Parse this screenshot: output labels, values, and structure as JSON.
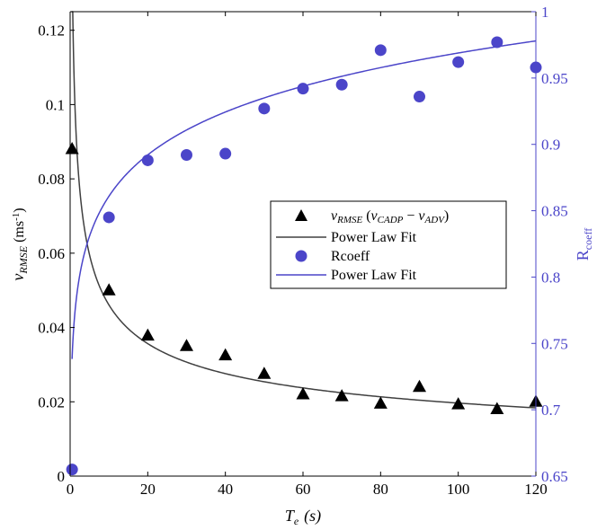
{
  "chart_data": {
    "type": "scatter",
    "xlabel": "T_e (s)",
    "xlabel_parts": {
      "main": "T",
      "sub": "e",
      "unit": "(s)"
    },
    "ylabel_left": "v_RMSE (ms-1)",
    "ylabel_left_parts": {
      "main": "v",
      "sub": "RMSE",
      "unit_open": "(ms",
      "unit_sup": "-1",
      "unit_close": ")"
    },
    "ylabel_right": "R_coeff",
    "ylabel_right_parts": {
      "main": "R",
      "sub": "coeff"
    },
    "xlim": [
      0,
      120
    ],
    "ylim_left": [
      0,
      0.125
    ],
    "ylim_right": [
      0.65,
      1.0
    ],
    "x_ticks": [
      "0",
      "20",
      "40",
      "60",
      "80",
      "100",
      "120"
    ],
    "y_left_ticks": [
      "0",
      "0.02",
      "0.04",
      "0.06",
      "0.08",
      "0.1",
      "0.12"
    ],
    "y_right_ticks": [
      "0.65",
      "0.7",
      "0.75",
      "0.8",
      "0.85",
      "0.9",
      "0.95",
      "1"
    ],
    "grid": false,
    "legend_position": "center-right",
    "colors": {
      "rmse": "#000000",
      "rmse_fit": "#404040",
      "rcoeff": "#4b45c9",
      "rcoeff_fit": "#4b45c9",
      "right_axis": "#4b45c9"
    },
    "series": [
      {
        "name": "v_RMSE (v_CADP − v_ADV)",
        "axis": "left",
        "marker": "triangle",
        "x": [
          0.5,
          10,
          20,
          30,
          40,
          50,
          60,
          70,
          80,
          90,
          100,
          110,
          120
        ],
        "y": [
          0.088,
          0.05,
          0.0378,
          0.035,
          0.0325,
          0.0275,
          0.022,
          0.0215,
          0.0195,
          0.024,
          0.0193,
          0.018,
          0.02
        ]
      },
      {
        "name": "Power Law Fit",
        "axis": "left",
        "line": "fit",
        "model": {
          "a": 0.108,
          "b": -0.37
        }
      },
      {
        "name": "Rcoeff",
        "axis": "right",
        "marker": "circle",
        "x": [
          0.5,
          10,
          20,
          30,
          40,
          50,
          60,
          70,
          80,
          90,
          100,
          110,
          120
        ],
        "y": [
          0.655,
          0.845,
          0.888,
          0.892,
          0.893,
          0.927,
          0.942,
          0.945,
          0.971,
          0.936,
          0.962,
          0.977,
          0.958
        ]
      },
      {
        "name": "Power Law Fit",
        "axis": "right",
        "line": "fit",
        "model": {
          "a": 0.765,
          "b": 0.0513
        }
      }
    ],
    "legend": {
      "entry1": {
        "main": "v",
        "sub": "RMSE",
        "open": " (",
        "v1": "v",
        "sub1": "CADP",
        "minus": " − ",
        "v2": "v",
        "sub2": "ADV",
        "close": ")"
      },
      "entry2": "Power Law Fit",
      "entry3": "Rcoeff",
      "entry4": "Power Law Fit"
    }
  }
}
